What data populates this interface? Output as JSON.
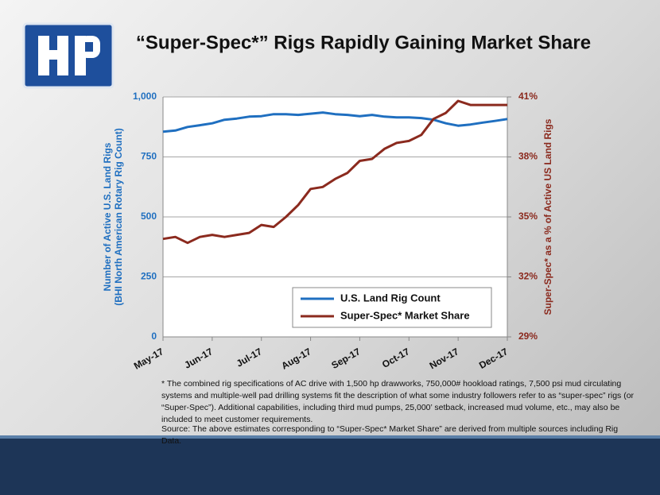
{
  "chart_data": {
    "type": "line",
    "title": "“Super-Spec*” Rigs Rapidly Gaining Market Share",
    "categories": [
      "May-17",
      null,
      null,
      null,
      "Jun-17",
      null,
      null,
      null,
      "Jul-17",
      null,
      null,
      null,
      "Aug-17",
      null,
      null,
      null,
      "Sep-17",
      null,
      null,
      null,
      "Oct-17",
      null,
      null,
      null,
      "Nov-17",
      null,
      null,
      null,
      "Dec-17"
    ],
    "series": [
      {
        "name": "U.S. Land Rig Count",
        "color": "#1f6fc0",
        "axis": "y",
        "values": [
          855,
          860,
          875,
          882,
          890,
          905,
          910,
          918,
          920,
          928,
          928,
          925,
          930,
          935,
          928,
          925,
          920,
          925,
          918,
          915,
          915,
          912,
          905,
          890,
          880,
          885,
          893,
          900,
          908
        ]
      },
      {
        "name": "Super-Spec* Market Share",
        "color": "#8b2a1e",
        "axis": "y2",
        "values": [
          33.9,
          34.0,
          33.7,
          34.0,
          34.1,
          34.0,
          34.1,
          34.2,
          34.6,
          34.5,
          35.0,
          35.6,
          36.4,
          36.5,
          36.9,
          37.2,
          37.8,
          37.9,
          38.4,
          38.7,
          38.8,
          39.1,
          39.9,
          40.2,
          40.8,
          40.6,
          40.6,
          40.6,
          40.6
        ]
      }
    ],
    "ylabel": [
      "Number of Active U.S. Land Rigs",
      "(BHI North American Rotary Rig Count)"
    ],
    "y2label": "Super-Spec* as a % of Active US Land Rigs",
    "ylim": [
      0,
      1000
    ],
    "yticks": [
      0,
      250,
      500,
      750,
      {
        "value": 1000,
        "label": "1,000"
      }
    ],
    "y2lim": [
      29,
      41
    ],
    "y2ticks": [
      {
        "value": 29,
        "label": "29%"
      },
      {
        "value": 32,
        "label": "32%"
      },
      {
        "value": 35,
        "label": "35%"
      },
      {
        "value": 38,
        "label": "38%"
      },
      {
        "value": 41,
        "label": "41%"
      }
    ],
    "grid": true,
    "legend": "lower right",
    "footnote": "* The combined rig specifications of AC drive with 1,500 hp drawworks, 750,000# hookload ratings, 7,500 psi mud circulating systems and multiple-well pad drilling systems fit the description of what some industry followers refer to as “super-spec” rigs (or “Super-Spec”). Additional capabilities, including third mud pumps, 25,000’ setback, increased mud volume, etc., may also be included to meet customer requirements.",
    "source": "Source: The above estimates corresponding to “Super-Spec* Market Share” are derived from multiple sources including Rig Data."
  }
}
